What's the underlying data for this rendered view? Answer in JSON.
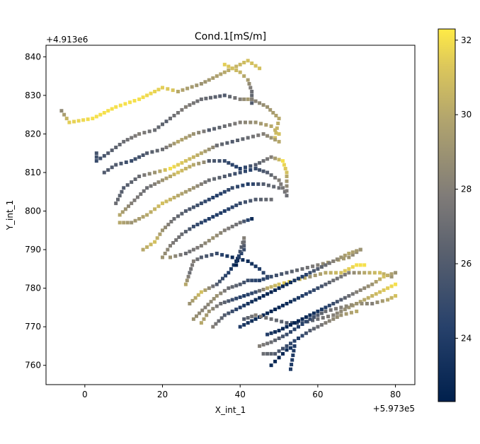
{
  "chart_data": {
    "type": "scatter",
    "title": "Cond.1[mS/m]",
    "xlabel": "X_int_1",
    "ylabel": "Y_int_1",
    "x_offset_label": "+5.973e5",
    "y_offset_label": "+4.913e6",
    "xlim": [
      -10,
      85
    ],
    "ylim": [
      755,
      843
    ],
    "xticks": [
      0,
      20,
      40,
      60,
      80
    ],
    "yticks": [
      760,
      770,
      780,
      790,
      800,
      810,
      820,
      830,
      840
    ],
    "colorbar": {
      "colormap": "cividis",
      "range": [
        22.3,
        32.3
      ],
      "ticks": [
        24,
        26,
        28,
        30,
        32
      ]
    },
    "grid": false,
    "marker": "square",
    "lines": [
      {
        "points": [
          [
            -6,
            826
          ],
          [
            -4,
            823
          ],
          [
            2,
            824
          ],
          [
            8,
            827
          ],
          [
            14,
            829
          ],
          [
            20,
            832
          ],
          [
            24,
            831
          ]
        ],
        "values": [
          28.5,
          31.5,
          32,
          32,
          32,
          31.5,
          31
        ]
      },
      {
        "points": [
          [
            24,
            831
          ],
          [
            30,
            833
          ],
          [
            36,
            836
          ],
          [
            42,
            839
          ],
          [
            45,
            837
          ]
        ],
        "values": [
          30,
          29,
          30,
          31,
          31
        ]
      },
      {
        "points": [
          [
            36,
            838
          ],
          [
            40,
            836
          ],
          [
            42,
            834
          ],
          [
            43,
            831
          ],
          [
            43,
            828
          ]
        ],
        "values": [
          31.5,
          30.5,
          29.5,
          27,
          26
        ]
      },
      {
        "points": [
          [
            3,
            815
          ],
          [
            3,
            813
          ],
          [
            6,
            815
          ],
          [
            10,
            818
          ],
          [
            14,
            820
          ],
          [
            18,
            821
          ],
          [
            22,
            824
          ]
        ],
        "values": [
          25.5,
          25,
          26,
          27,
          28,
          27,
          26
        ]
      },
      {
        "points": [
          [
            22,
            824
          ],
          [
            26,
            827
          ],
          [
            30,
            829
          ],
          [
            36,
            830
          ],
          [
            40,
            829
          ],
          [
            43,
            829
          ]
        ],
        "values": [
          27,
          28,
          27,
          26,
          28,
          30
        ]
      },
      {
        "points": [
          [
            43,
            829
          ],
          [
            47,
            827
          ],
          [
            50,
            824
          ],
          [
            49,
            819
          ]
        ],
        "values": [
          28,
          29,
          30,
          31
        ]
      },
      {
        "points": [
          [
            5,
            810
          ],
          [
            8,
            812
          ],
          [
            12,
            813
          ],
          [
            16,
            815
          ],
          [
            20,
            816
          ],
          [
            24,
            818
          ],
          [
            28,
            820
          ],
          [
            32,
            821
          ]
        ],
        "values": [
          26,
          26,
          25,
          26,
          27,
          30,
          29,
          27
        ]
      },
      {
        "points": [
          [
            32,
            821
          ],
          [
            36,
            822
          ],
          [
            40,
            823
          ],
          [
            44,
            823
          ],
          [
            48,
            822
          ],
          [
            50,
            820
          ]
        ],
        "values": [
          26,
          27,
          28,
          29,
          30,
          31
        ]
      },
      {
        "points": [
          [
            8,
            802
          ],
          [
            10,
            806
          ],
          [
            14,
            809
          ],
          [
            18,
            810
          ],
          [
            22,
            811
          ],
          [
            26,
            813
          ],
          [
            30,
            815
          ],
          [
            34,
            817
          ]
        ],
        "values": [
          27,
          26,
          27,
          29,
          32,
          31,
          30,
          28
        ]
      },
      {
        "points": [
          [
            34,
            817
          ],
          [
            38,
            818
          ],
          [
            42,
            819
          ],
          [
            46,
            820
          ],
          [
            50,
            818
          ]
        ],
        "values": [
          27,
          26,
          27,
          28,
          30
        ]
      },
      {
        "points": [
          [
            9,
            799
          ],
          [
            12,
            802
          ],
          [
            16,
            806
          ],
          [
            20,
            808
          ],
          [
            24,
            810
          ],
          [
            28,
            812
          ],
          [
            32,
            813
          ]
        ],
        "values": [
          30,
          28,
          27,
          29,
          31,
          30,
          28
        ]
      },
      {
        "points": [
          [
            32,
            813
          ],
          [
            36,
            813
          ],
          [
            40,
            811
          ],
          [
            44,
            812
          ],
          [
            48,
            814
          ],
          [
            51,
            813
          ],
          [
            52,
            810
          ]
        ],
        "values": [
          26,
          25,
          24,
          26,
          28,
          32,
          31
        ]
      },
      {
        "points": [
          [
            9,
            797
          ],
          [
            12,
            797
          ],
          [
            16,
            799
          ],
          [
            20,
            802
          ],
          [
            24,
            804
          ],
          [
            28,
            806
          ],
          [
            32,
            808
          ],
          [
            36,
            809
          ],
          [
            40,
            810
          ],
          [
            44,
            811
          ]
        ],
        "values": [
          30,
          29,
          30,
          31,
          30,
          29,
          27,
          26,
          25,
          24
        ]
      },
      {
        "points": [
          [
            44,
            811
          ],
          [
            47,
            810
          ],
          [
            50,
            808
          ],
          [
            52,
            804
          ],
          [
            52,
            809
          ]
        ],
        "values": [
          25,
          26,
          28,
          27,
          30
        ]
      },
      {
        "points": [
          [
            15,
            790
          ],
          [
            18,
            792
          ],
          [
            20,
            795
          ],
          [
            23,
            798
          ],
          [
            26,
            800
          ],
          [
            30,
            802
          ],
          [
            34,
            804
          ],
          [
            38,
            806
          ],
          [
            42,
            807
          ],
          [
            46,
            807
          ],
          [
            50,
            806
          ]
        ],
        "values": [
          30,
          31,
          29,
          27,
          26,
          25,
          24,
          25,
          24,
          26,
          27
        ]
      },
      {
        "points": [
          [
            20,
            788
          ],
          [
            22,
            791
          ],
          [
            25,
            794
          ],
          [
            28,
            796
          ],
          [
            32,
            798
          ],
          [
            36,
            800
          ],
          [
            40,
            802
          ],
          [
            44,
            803
          ],
          [
            48,
            803
          ]
        ],
        "values": [
          29,
          28,
          27,
          25,
          24,
          24,
          25,
          26,
          27
        ]
      },
      {
        "points": [
          [
            22,
            788
          ],
          [
            26,
            789
          ],
          [
            30,
            791
          ],
          [
            33,
            793
          ],
          [
            36,
            795
          ],
          [
            40,
            797
          ],
          [
            43,
            798
          ]
        ],
        "values": [
          29,
          27,
          28,
          29,
          28,
          27,
          23
        ]
      },
      {
        "points": [
          [
            26,
            781
          ],
          [
            27,
            784
          ],
          [
            28,
            787
          ],
          [
            30,
            788
          ],
          [
            34,
            789
          ],
          [
            38,
            788
          ],
          [
            42,
            787
          ],
          [
            45,
            785
          ],
          [
            47,
            783
          ]
        ],
        "values": [
          30,
          27,
          28,
          26,
          25,
          23,
          23,
          24,
          25
        ]
      },
      {
        "points": [
          [
            27,
            776
          ],
          [
            30,
            779
          ],
          [
            34,
            781
          ],
          [
            37,
            784
          ],
          [
            39,
            787
          ],
          [
            41,
            790
          ],
          [
            41,
            793
          ],
          [
            39,
            786
          ]
        ],
        "values": [
          29,
          31,
          26,
          24,
          23,
          25,
          28,
          22.5
        ]
      },
      {
        "points": [
          [
            28,
            772
          ],
          [
            31,
            775
          ],
          [
            34,
            778
          ],
          [
            37,
            780
          ],
          [
            40,
            781
          ],
          [
            42,
            782
          ],
          [
            45,
            782
          ],
          [
            48,
            783
          ],
          [
            52,
            784
          ],
          [
            56,
            785
          ],
          [
            60,
            786
          ],
          [
            64,
            787
          ],
          [
            68,
            788
          ],
          [
            71,
            790
          ]
        ],
        "values": [
          29,
          28,
          29,
          27,
          26,
          25,
          24,
          25,
          26,
          27,
          28,
          30,
          29,
          28
        ]
      },
      {
        "points": [
          [
            30,
            771
          ],
          [
            32,
            774
          ],
          [
            35,
            776
          ],
          [
            38,
            777
          ],
          [
            41,
            778
          ],
          [
            44,
            779
          ],
          [
            47,
            780
          ],
          [
            50,
            781
          ],
          [
            54,
            782
          ],
          [
            58,
            783
          ],
          [
            62,
            784
          ],
          [
            66,
            784
          ],
          [
            70,
            786
          ],
          [
            72,
            786
          ]
        ],
        "values": [
          30,
          29,
          27,
          25,
          24,
          25,
          30,
          31,
          32,
          29,
          30,
          31,
          32,
          32
        ]
      },
      {
        "points": [
          [
            33,
            770
          ],
          [
            36,
            773
          ],
          [
            40,
            775
          ],
          [
            44,
            777
          ],
          [
            48,
            779
          ],
          [
            52,
            781
          ],
          [
            56,
            783
          ],
          [
            60,
            785
          ],
          [
            64,
            787
          ],
          [
            68,
            789
          ],
          [
            71,
            790
          ]
        ],
        "values": [
          28,
          26,
          24,
          23,
          22.5,
          23,
          24,
          26,
          28,
          30,
          29
        ]
      },
      {
        "points": [
          [
            40,
            770
          ],
          [
            44,
            772
          ],
          [
            48,
            774
          ],
          [
            52,
            776
          ],
          [
            56,
            778
          ],
          [
            60,
            780
          ],
          [
            64,
            782
          ],
          [
            68,
            784
          ],
          [
            72,
            784
          ],
          [
            76,
            784
          ],
          [
            79,
            783
          ]
        ],
        "values": [
          24,
          23,
          22.5,
          23,
          24,
          25,
          27,
          28,
          30,
          31,
          29
        ]
      },
      {
        "points": [
          [
            41,
            772
          ],
          [
            44,
            773
          ],
          [
            48,
            772
          ],
          [
            52,
            771
          ],
          [
            56,
            771
          ],
          [
            60,
            772
          ],
          [
            64,
            773
          ],
          [
            68,
            775
          ],
          [
            72,
            777
          ],
          [
            76,
            779
          ],
          [
            80,
            781
          ]
        ],
        "values": [
          26,
          28,
          27,
          26,
          25,
          27,
          28,
          29,
          30,
          31,
          32
        ]
      },
      {
        "points": [
          [
            47,
            768
          ],
          [
            50,
            769
          ],
          [
            54,
            771
          ],
          [
            58,
            773
          ],
          [
            62,
            775
          ],
          [
            66,
            777
          ],
          [
            70,
            779
          ],
          [
            74,
            781
          ],
          [
            77,
            783
          ],
          [
            80,
            784
          ]
        ],
        "values": [
          24,
          23,
          22.5,
          23,
          24,
          26,
          28,
          29,
          31,
          29
        ]
      },
      {
        "points": [
          [
            45,
            765
          ],
          [
            48,
            766
          ],
          [
            52,
            768
          ],
          [
            55,
            770
          ],
          [
            58,
            772
          ],
          [
            62,
            774
          ],
          [
            66,
            775
          ],
          [
            70,
            776
          ],
          [
            74,
            776
          ],
          [
            78,
            777
          ],
          [
            80,
            778
          ]
        ],
        "values": [
          28,
          27,
          25,
          24,
          25,
          27,
          28,
          29,
          28,
          30,
          31
        ]
      },
      {
        "points": [
          [
            46,
            763
          ],
          [
            49,
            763
          ],
          [
            52,
            765
          ],
          [
            55,
            767
          ],
          [
            58,
            769
          ],
          [
            62,
            771
          ],
          [
            66,
            773
          ],
          [
            70,
            774
          ]
        ],
        "values": [
          27,
          26,
          25,
          24,
          26,
          28,
          29,
          30
        ]
      },
      {
        "points": [
          [
            48,
            760
          ],
          [
            50,
            762
          ],
          [
            52,
            764
          ],
          [
            54,
            765
          ],
          [
            53,
            759
          ]
        ],
        "values": [
          23,
          22.5,
          23,
          24,
          24
        ]
      }
    ]
  }
}
